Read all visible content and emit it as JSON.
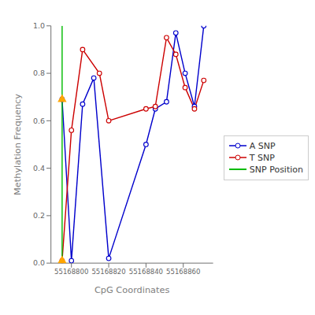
{
  "chart_data": {
    "type": "line",
    "xlabel": "CpG Coordinates",
    "ylabel": "Methylation Frequency",
    "xlim": [
      55168789,
      55168876
    ],
    "xticks": [
      55168800,
      55168820,
      55168840,
      55168860
    ],
    "ylim": [
      0.0,
      1.0
    ],
    "yticks": [
      {
        "value": 0.0,
        "label": "0.0"
      },
      0.2,
      0.4,
      0.6,
      0.8,
      {
        "value": 1.0,
        "label": "1.0"
      }
    ],
    "grid": false,
    "legend": "center right",
    "series": [
      {
        "name": "A SNP",
        "type": "line",
        "marker": "o",
        "color": "#0000cc",
        "x": [
          55168795,
          55168800,
          55168806,
          55168812,
          55168820,
          55168840,
          55168845,
          55168851,
          55168856,
          55168861,
          55168866,
          55168871
        ],
        "values": [
          0.69,
          0.01,
          0.67,
          0.78,
          0.02,
          0.5,
          0.65,
          0.68,
          0.97,
          0.8,
          0.66,
          1.0
        ]
      },
      {
        "name": "T SNP",
        "type": "line",
        "marker": "o",
        "color": "#cc0000",
        "x": [
          55168795,
          55168800,
          55168806,
          55168815,
          55168820,
          55168840,
          55168845,
          55168851,
          55168856,
          55168861,
          55168866,
          55168871
        ],
        "values": [
          0.01,
          0.56,
          0.9,
          0.8,
          0.6,
          0.65,
          0.66,
          0.95,
          0.88,
          0.74,
          0.65,
          0.77
        ]
      },
      {
        "name": "SNP Position",
        "type": "vline",
        "color": "#00bb00",
        "x": 55168795
      },
      {
        "type": "scatter",
        "marker": "^",
        "color": "#FFA500",
        "x": [
          55168795,
          55168795
        ],
        "values": [
          0.69,
          0.01
        ]
      }
    ]
  }
}
